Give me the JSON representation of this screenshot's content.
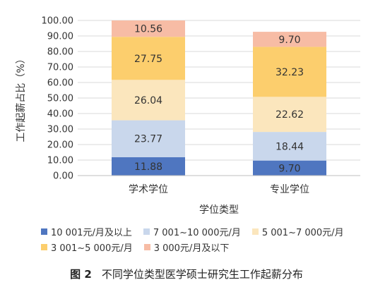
{
  "chart_data": {
    "type": "bar",
    "stacked": true,
    "categories": [
      "学术学位",
      "专业学位"
    ],
    "series": [
      {
        "name": "10 001元/月及以上",
        "color": "#4f76c0",
        "values": [
          11.88,
          9.7
        ]
      },
      {
        "name": "7 001~10 000元/月",
        "color": "#c9d7ec",
        "values": [
          23.77,
          18.44
        ]
      },
      {
        "name": "5 001~7 000元/月",
        "color": "#fbe6bd",
        "values": [
          26.04,
          22.62
        ]
      },
      {
        "name": "3 001~5 000元/月",
        "color": "#fcce6d",
        "values": [
          27.75,
          32.23
        ]
      },
      {
        "name": "3 000元/月及以下",
        "color": "#f7bca5",
        "values": [
          10.56,
          9.7
        ]
      }
    ],
    "xlabel": "学位类型",
    "ylabel": "工作起薪占比（%）",
    "ylim": [
      0,
      100
    ],
    "yticks": [
      "0.00",
      "10.00",
      "20.00",
      "30.00",
      "40.00",
      "50.00",
      "60.00",
      "70.00",
      "80.00",
      "90.00",
      "100.00"
    ],
    "grid": true,
    "legend_position": "bottom"
  },
  "caption": {
    "label": "图 2",
    "text": "不同学位类型医学硕士研究生工作起薪分布"
  }
}
